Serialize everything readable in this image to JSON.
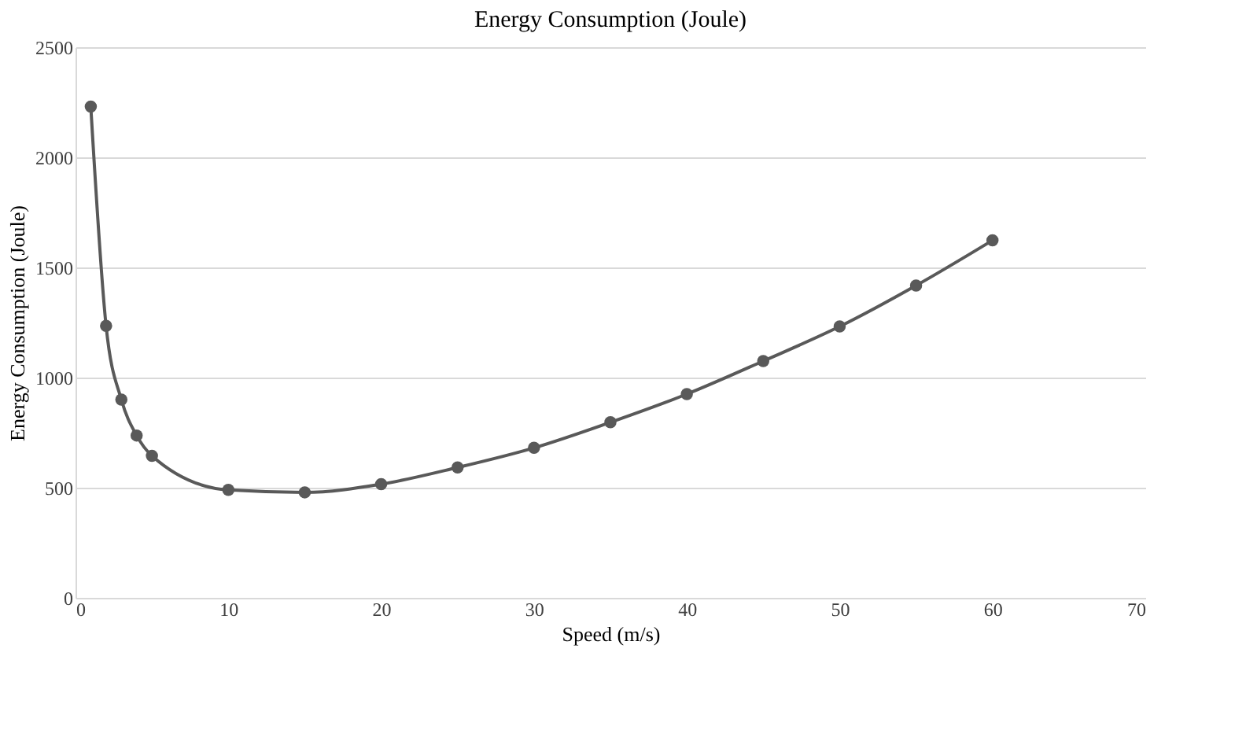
{
  "chart_data": {
    "type": "line",
    "title": "Energy  Consumption  (Joule)",
    "xlabel": "Speed (m/s)",
    "ylabel": "Energy Consumption (Joule)",
    "x": [
      1,
      2,
      3,
      4,
      5,
      10,
      15,
      20,
      25,
      30,
      35,
      40,
      45,
      50,
      55,
      60
    ],
    "series": [
      {
        "color": "#595959",
        "values": [
          2230,
          1235,
          900,
          737,
          645,
          490,
          479,
          516,
          592,
          681,
          797,
          925,
          1075,
          1232,
          1418,
          1623
        ]
      }
    ],
    "xlim": [
      0,
      70
    ],
    "xticks": [
      0,
      10,
      20,
      30,
      40,
      50,
      60,
      70
    ],
    "ylim": [
      0,
      2500
    ],
    "yticks": [
      0,
      500,
      1000,
      1500,
      2000,
      2500
    ],
    "grid": "y",
    "marker": "circle",
    "line_style": "solid"
  }
}
